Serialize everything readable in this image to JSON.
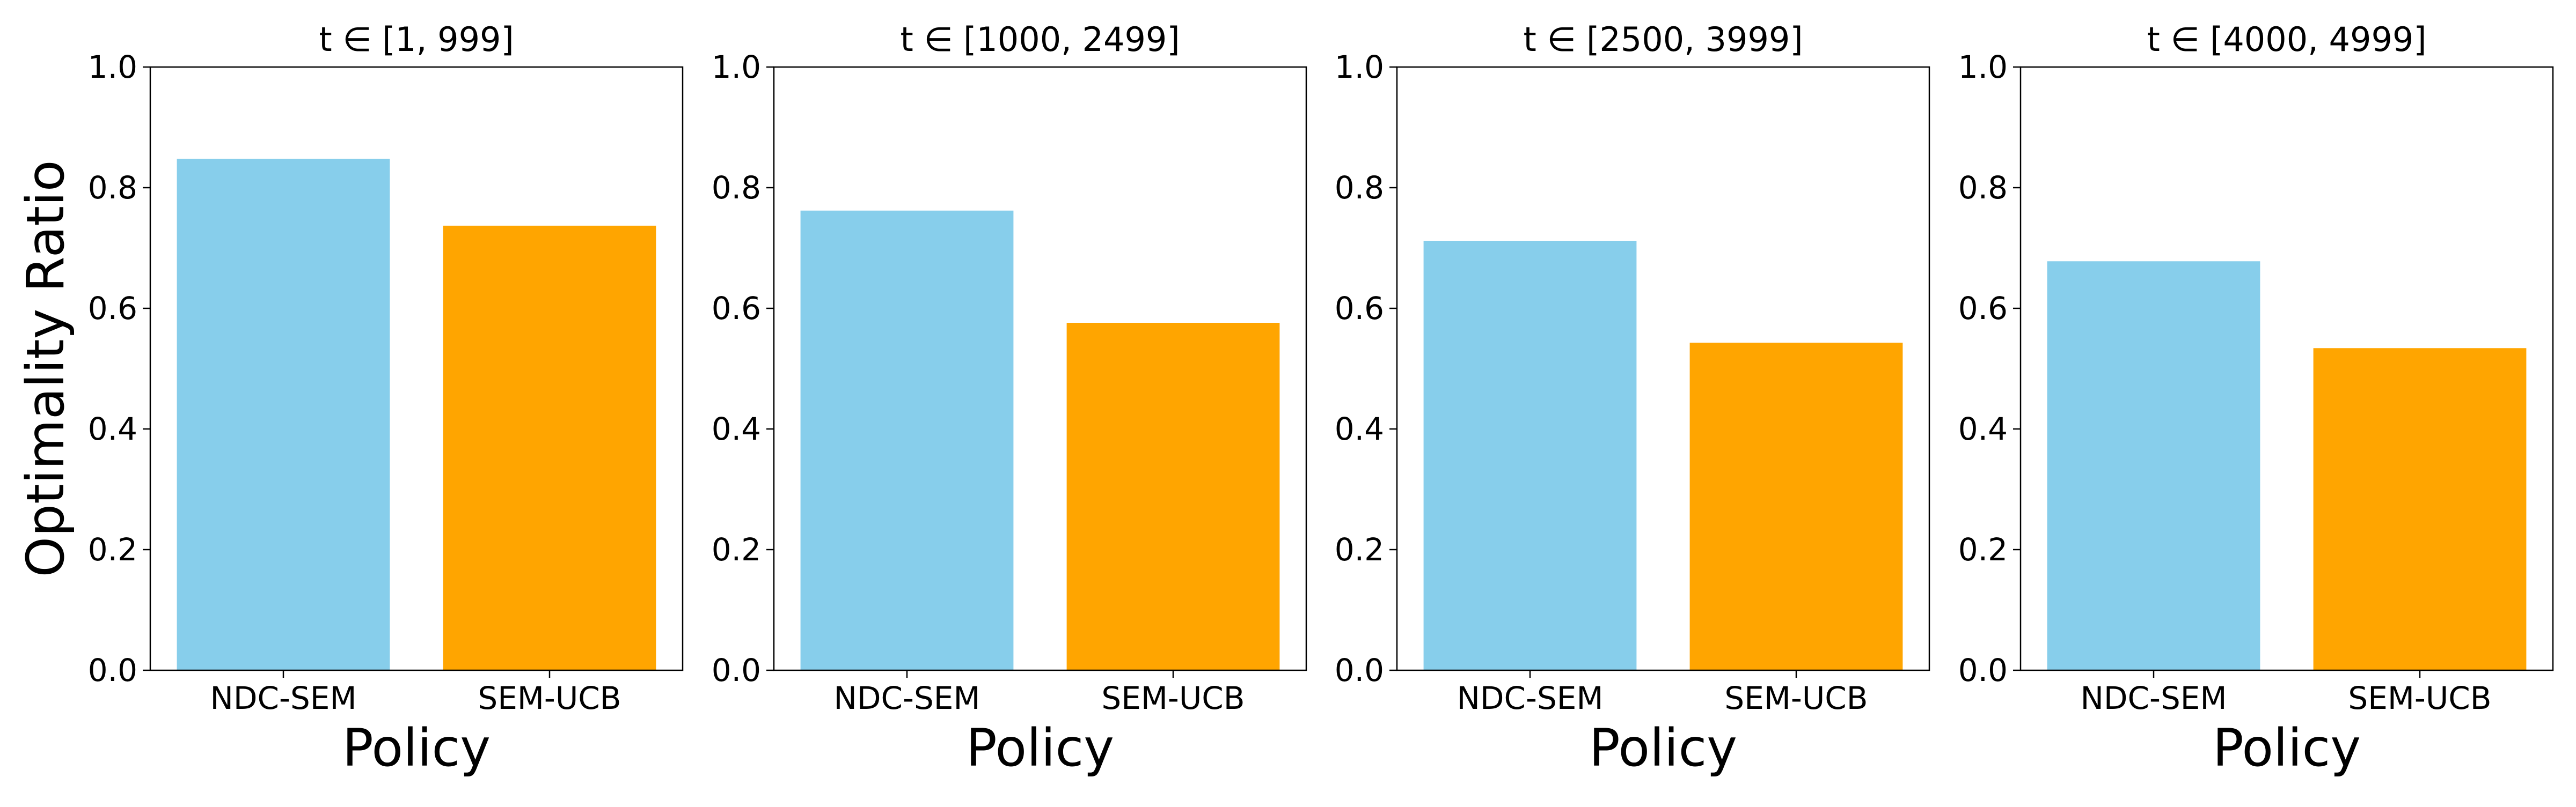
{
  "colors": {
    "NDC-SEM": "#87CEEB",
    "SEM-UCB": "#FFA500",
    "axis": "#000000",
    "background": "#ffffff"
  },
  "chart_data": [
    {
      "type": "bar",
      "title": "t ∈ [1, 999]",
      "categories": [
        "NDC-SEM",
        "SEM-UCB"
      ],
      "values": [
        0.848,
        0.737
      ],
      "xlabel": "Policy",
      "ylabel": "Optimality Ratio",
      "ylim": [
        0.0,
        1.0
      ],
      "yticks": [
        "0.0",
        "0.2",
        "0.4",
        "0.6",
        "0.8",
        "1.0"
      ],
      "grid": false
    },
    {
      "type": "bar",
      "title": "t ∈ [1000, 2499]",
      "categories": [
        "NDC-SEM",
        "SEM-UCB"
      ],
      "values": [
        0.762,
        0.576
      ],
      "xlabel": "Policy",
      "ylabel": "",
      "ylim": [
        0.0,
        1.0
      ],
      "yticks": [
        "0.0",
        "0.2",
        "0.4",
        "0.6",
        "0.8",
        "1.0"
      ],
      "grid": false
    },
    {
      "type": "bar",
      "title": "t ∈ [2500, 3999]",
      "categories": [
        "NDC-SEM",
        "SEM-UCB"
      ],
      "values": [
        0.712,
        0.543
      ],
      "xlabel": "Policy",
      "ylabel": "",
      "ylim": [
        0.0,
        1.0
      ],
      "yticks": [
        "0.0",
        "0.2",
        "0.4",
        "0.6",
        "0.8",
        "1.0"
      ],
      "grid": false
    },
    {
      "type": "bar",
      "title": "t ∈ [4000, 4999]",
      "categories": [
        "NDC-SEM",
        "SEM-UCB"
      ],
      "values": [
        0.678,
        0.534
      ],
      "xlabel": "Policy",
      "ylabel": "",
      "ylim": [
        0.0,
        1.0
      ],
      "yticks": [
        "0.0",
        "0.2",
        "0.4",
        "0.6",
        "0.8",
        "1.0"
      ],
      "grid": false
    }
  ]
}
